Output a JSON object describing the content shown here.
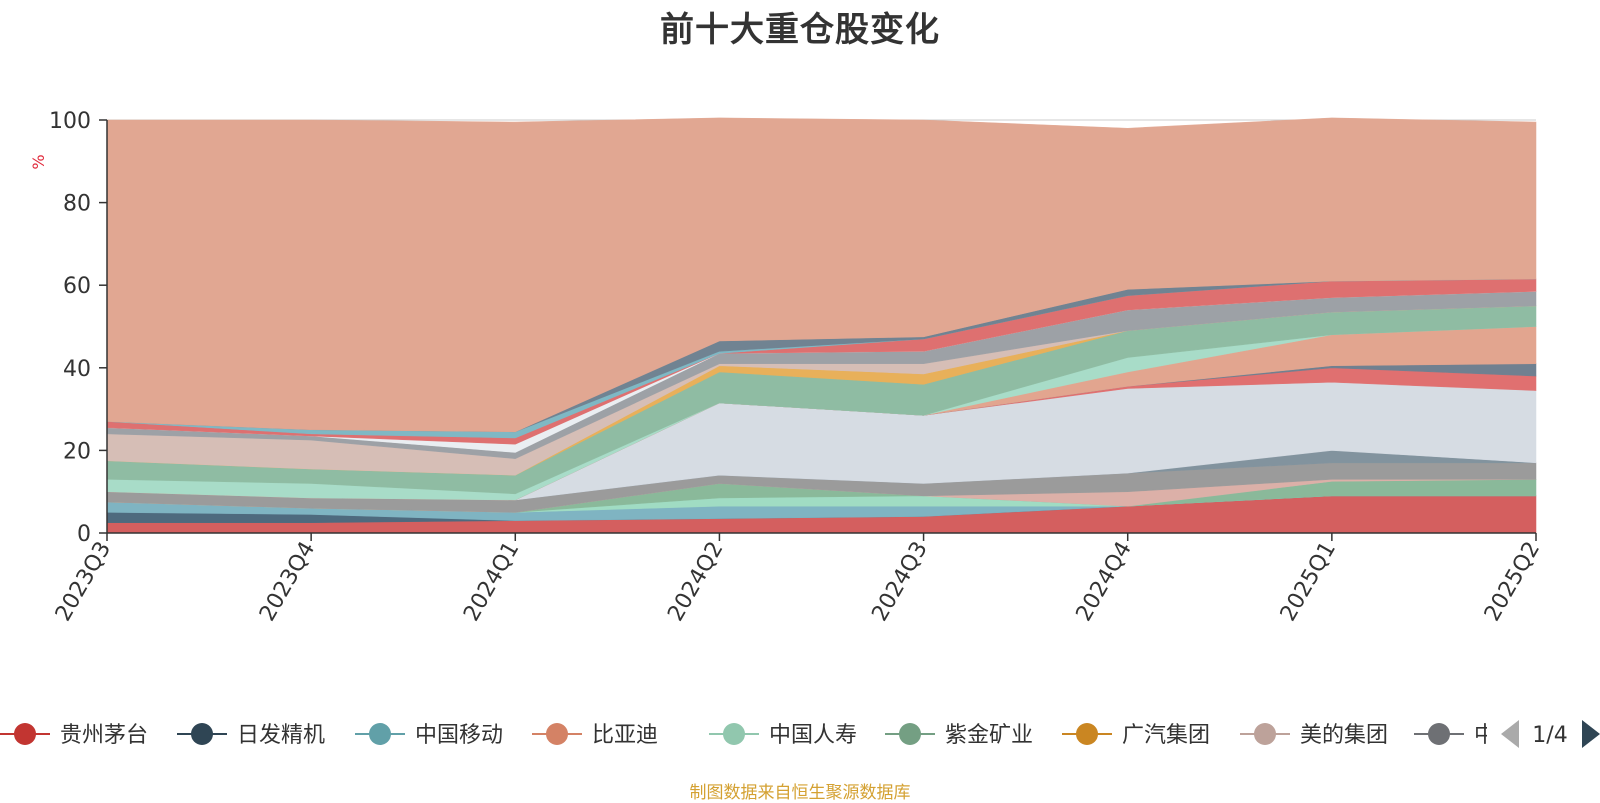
{
  "title": "前十大重仓股变化",
  "source_note": "制图数据来自恒生聚源数据库",
  "legend_page": "1/4",
  "colors": {
    "grid": "#cccccc",
    "axis": "#333333",
    "unit_label": "#e0293b",
    "pager_prev": "#aaaaaa",
    "pager_next": "#2f4554"
  },
  "chart_data": {
    "type": "area",
    "stacked": true,
    "x": [
      "2023Q3",
      "2023Q4",
      "2024Q1",
      "2024Q2",
      "2024Q3",
      "2024Q4",
      "2025Q1",
      "2025Q2"
    ],
    "ylabel": "%",
    "ylim": [
      0,
      100
    ],
    "yticks": [
      0,
      20,
      40,
      60,
      80,
      100
    ],
    "grid": true,
    "legend_position": "bottom",
    "legend": [
      {
        "name": "贵州茅台",
        "color": "#c23531"
      },
      {
        "name": "日发精机",
        "color": "#2f4554"
      },
      {
        "name": "中国移动",
        "color": "#61a0a8"
      },
      {
        "name": "比亚迪",
        "color": "#d48265"
      },
      {
        "name": "中国人寿",
        "color": "#91c7ae"
      },
      {
        "name": "紫金矿业",
        "color": "#749f83"
      },
      {
        "name": "广汽集团",
        "color": "#ca8622"
      },
      {
        "name": "美的集团",
        "color": "#bda29a"
      },
      {
        "name": "中国...",
        "color": "#6e7074"
      }
    ],
    "layers": [
      {
        "color": "#d45f5f",
        "values": [
          2.5,
          2.5,
          3.0,
          3.5,
          4.0,
          6.5,
          9.0,
          9.0
        ]
      },
      {
        "color": "#4e6a7e",
        "values": [
          2.5,
          2.0,
          0,
          0,
          0,
          0,
          0,
          0
        ]
      },
      {
        "color": "#7fb4c2",
        "values": [
          2.5,
          1.5,
          2.0,
          3.0,
          2.5,
          0,
          0,
          0
        ]
      },
      {
        "color": "#a0dcc3",
        "values": [
          0,
          0,
          0,
          2.0,
          2.5,
          0,
          0,
          0
        ]
      },
      {
        "color": "#8ab99a",
        "values": [
          0,
          0,
          0,
          3.5,
          0,
          0,
          3.5,
          4.0
        ]
      },
      {
        "color": "#dcb0a8",
        "values": [
          0,
          0,
          0,
          0,
          0,
          3.5,
          0.5,
          0
        ]
      },
      {
        "color": "#9b9b9b",
        "values": [
          2.5,
          2.5,
          3.0,
          2.0,
          3.0,
          4.5,
          4.0,
          4.0
        ]
      },
      {
        "color": "#82939e",
        "values": [
          0,
          0,
          0,
          0,
          0,
          0,
          3.0,
          0
        ]
      },
      {
        "color": "#d6dce3",
        "values": [
          0,
          0,
          0,
          17.5,
          16.5,
          20.5,
          16.5,
          17.5
        ]
      },
      {
        "color": "#e07070",
        "values": [
          0,
          0,
          0,
          0,
          0,
          0.5,
          3.5,
          3.5
        ]
      },
      {
        "color": "#708090",
        "values": [
          0,
          0,
          0,
          0,
          0,
          0,
          0.5,
          3.0
        ]
      },
      {
        "color": "#e2a58f",
        "values": [
          0,
          0,
          0,
          0,
          0,
          3.5,
          7.5,
          9.0
        ]
      },
      {
        "color": "#a8dcc8",
        "values": [
          3.0,
          3.5,
          1.5,
          0,
          0,
          3.5,
          0,
          0
        ]
      },
      {
        "color": "#8fbca3",
        "values": [
          4.5,
          3.5,
          4.5,
          7.5,
          7.5,
          6.5,
          5.5,
          5.0
        ]
      },
      {
        "color": "#e8b05a",
        "values": [
          0,
          0,
          0,
          1.5,
          2.5,
          0,
          0,
          0
        ]
      },
      {
        "color": "#d6beb6",
        "values": [
          6.5,
          7.0,
          4.0,
          0.5,
          2.5,
          0,
          0,
          0
        ]
      },
      {
        "color": "#9da1a6",
        "values": [
          1.5,
          1.0,
          1.5,
          2.5,
          3.0,
          5.0,
          3.5,
          3.5
        ]
      },
      {
        "color": "#eaeef2",
        "values": [
          0,
          0,
          2.0,
          0,
          0,
          0,
          0,
          0
        ]
      },
      {
        "color": "#de7070",
        "values": [
          1.5,
          0.5,
          1.5,
          0,
          3.0,
          3.5,
          4.0,
          3.0
        ]
      },
      {
        "color": "#7fb8c4",
        "values": [
          0,
          1.0,
          1.5,
          0.5,
          0,
          0,
          0,
          0
        ]
      },
      {
        "color": "#708392",
        "values": [
          0,
          0,
          0,
          2.5,
          0.5,
          1.5,
          0,
          0
        ]
      },
      {
        "color": "#e1a792",
        "values": [
          73.0,
          75.0,
          75.0,
          54.0,
          52.5,
          39.0,
          39.5,
          38.0
        ]
      }
    ]
  }
}
